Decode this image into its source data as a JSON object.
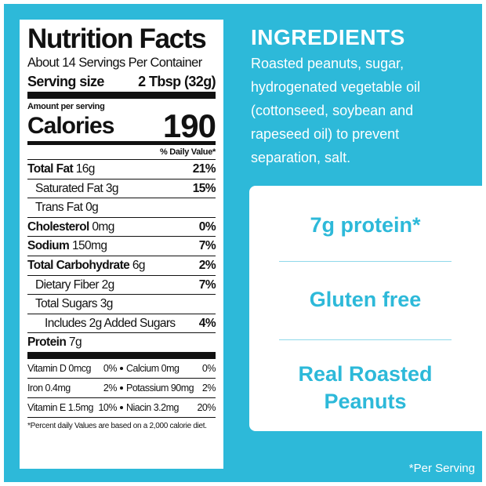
{
  "nutrition_facts": {
    "title": "Nutrition Facts",
    "servings": "About 14 Servings Per Container",
    "serving_size_label": "Serving size",
    "serving_size": "2 Tbsp (32g)",
    "amount_per_serving": "Amount per serving",
    "calories_label": "Calories",
    "calories": 190,
    "daily_value_header": "% Daily Value*",
    "nutrients": [
      {
        "name": "Total Fat",
        "amount": "16g",
        "dv": "21%"
      },
      {
        "name": "Saturated Fat",
        "amount": "3g",
        "dv": "15%"
      },
      {
        "name": "Trans Fat",
        "amount": "0g"
      },
      {
        "name": "Cholesterol",
        "amount": "0mg",
        "dv": "0%"
      },
      {
        "name": "Sodium",
        "amount": "150mg",
        "dv": "7%"
      },
      {
        "name": "Total Carbohydrate",
        "amount": "6g",
        "dv": "2%"
      },
      {
        "name": "Dietary Fiber",
        "amount": "2g",
        "dv": "7%"
      },
      {
        "name": "Total Sugars",
        "amount": "3g"
      },
      {
        "name": "Includes 2g Added Sugars",
        "dv": "4%"
      },
      {
        "name": "Protein",
        "amount": "7g"
      }
    ],
    "vitamins": [
      {
        "left_name": "Vitamin D 0mcg",
        "left_dv": "0%",
        "right_name": "Calcium 0mg",
        "right_dv": "0%"
      },
      {
        "left_name": "Iron 0.4mg",
        "left_dv": "2%",
        "right_name": "Potassium 90mg",
        "right_dv": "2%"
      },
      {
        "left_name": "Vitamin E 1.5mg",
        "left_dv": "10%",
        "right_name": "Niacin 3.2mg",
        "right_dv": "20%"
      }
    ],
    "footnote": "*Percent daily Values are based on a 2,000 calorie diet."
  },
  "ingredients": {
    "heading": "INGREDIENTS",
    "text": "Roasted peanuts, sugar, hydrogenated vegetable oil (cottonseed, soybean and rapeseed oil) to prevent separation, salt."
  },
  "highlights": [
    "7g protein*",
    "Gluten free",
    "Real Roasted Peanuts"
  ],
  "footnote": "*Per Serving"
}
